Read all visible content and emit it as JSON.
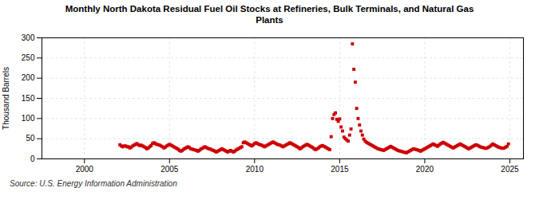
{
  "chart_data": {
    "type": "scatter",
    "title": "Monthly North Dakota Residual Fuel Oil Stocks at Refineries, Bulk Terminals, and Natural Gas\nPlants",
    "ylabel": "Thousand Barrels",
    "source": "Source: U.S. Energy Information Administration",
    "color": "#cc0000",
    "marker": "square",
    "grid": true,
    "xlim": [
      1997.5,
      2025.8
    ],
    "xticks": [
      2000,
      2005,
      2010,
      2015,
      2020,
      2025
    ],
    "ylim": [
      0,
      300
    ],
    "yticks": [
      0,
      50,
      100,
      150,
      200,
      250,
      300
    ],
    "x": [
      2002.083,
      2002.167,
      2002.25,
      2002.333,
      2002.417,
      2002.5,
      2002.583,
      2002.667,
      2002.75,
      2002.833,
      2002.917,
      2003.0,
      2003.083,
      2003.167,
      2003.25,
      2003.333,
      2003.417,
      2003.5,
      2003.583,
      2003.667,
      2003.75,
      2003.833,
      2003.917,
      2004.0,
      2004.083,
      2004.167,
      2004.25,
      2004.333,
      2004.417,
      2004.5,
      2004.583,
      2004.667,
      2004.75,
      2004.833,
      2004.917,
      2005.0,
      2005.083,
      2005.167,
      2005.25,
      2005.333,
      2005.417,
      2005.5,
      2005.583,
      2005.667,
      2005.75,
      2005.833,
      2005.917,
      2006.0,
      2006.083,
      2006.167,
      2006.25,
      2006.333,
      2006.417,
      2006.5,
      2006.583,
      2006.667,
      2006.75,
      2006.833,
      2006.917,
      2007.0,
      2007.083,
      2007.167,
      2007.25,
      2007.333,
      2007.417,
      2007.5,
      2007.583,
      2007.667,
      2007.75,
      2007.833,
      2007.917,
      2008.0,
      2008.083,
      2008.167,
      2008.25,
      2008.333,
      2008.417,
      2008.5,
      2008.583,
      2008.667,
      2008.75,
      2008.833,
      2008.917,
      2009.0,
      2009.083,
      2009.167,
      2009.25,
      2009.333,
      2009.417,
      2009.5,
      2009.583,
      2009.667,
      2009.75,
      2009.833,
      2009.917,
      2010.0,
      2010.083,
      2010.167,
      2010.25,
      2010.333,
      2010.417,
      2010.5,
      2010.583,
      2010.667,
      2010.75,
      2010.833,
      2010.917,
      2011.0,
      2011.083,
      2011.167,
      2011.25,
      2011.333,
      2011.417,
      2011.5,
      2011.583,
      2011.667,
      2011.75,
      2011.833,
      2011.917,
      2012.0,
      2012.083,
      2012.167,
      2012.25,
      2012.333,
      2012.417,
      2012.5,
      2012.583,
      2012.667,
      2012.75,
      2012.833,
      2012.917,
      2013.0,
      2013.083,
      2013.167,
      2013.25,
      2013.333,
      2013.417,
      2013.5,
      2013.583,
      2013.667,
      2013.75,
      2013.833,
      2013.917,
      2014.0,
      2014.083,
      2014.167,
      2014.25,
      2014.333,
      2014.417,
      2014.5,
      2014.583,
      2014.667,
      2014.75,
      2014.833,
      2014.917,
      2015.0,
      2015.083,
      2015.167,
      2015.25,
      2015.333,
      2015.417,
      2015.5,
      2015.583,
      2015.667,
      2015.75,
      2015.833,
      2015.917,
      2016.0,
      2016.083,
      2016.167,
      2016.25,
      2016.333,
      2016.417,
      2016.5,
      2016.583,
      2016.667,
      2016.75,
      2016.833,
      2016.917,
      2017.0,
      2017.083,
      2017.167,
      2017.25,
      2017.333,
      2017.417,
      2017.5,
      2017.583,
      2017.667,
      2017.75,
      2017.833,
      2017.917,
      2018.0,
      2018.083,
      2018.167,
      2018.25,
      2018.333,
      2018.417,
      2018.5,
      2018.583,
      2018.667,
      2018.75,
      2018.833,
      2018.917,
      2019.0,
      2019.083,
      2019.167,
      2019.25,
      2019.333,
      2019.417,
      2019.5,
      2019.583,
      2019.667,
      2019.75,
      2019.833,
      2019.917,
      2020.0,
      2020.083,
      2020.167,
      2020.25,
      2020.333,
      2020.417,
      2020.5,
      2020.583,
      2020.667,
      2020.75,
      2020.833,
      2020.917,
      2021.0,
      2021.083,
      2021.167,
      2021.25,
      2021.333,
      2021.417,
      2021.5,
      2021.583,
      2021.667,
      2021.75,
      2021.833,
      2021.917,
      2022.0,
      2022.083,
      2022.167,
      2022.25,
      2022.333,
      2022.417,
      2022.5,
      2022.583,
      2022.667,
      2022.75,
      2022.833,
      2022.917,
      2023.0,
      2023.083,
      2023.167,
      2023.25,
      2023.333,
      2023.417,
      2023.5,
      2023.583,
      2023.667,
      2023.75,
      2023.833,
      2023.917,
      2024.0,
      2024.083,
      2024.167,
      2024.25,
      2024.333,
      2024.417,
      2024.5,
      2024.583,
      2024.667,
      2024.75,
      2024.833,
      2024.917
    ],
    "values": [
      35,
      32,
      30,
      32,
      32,
      30,
      30,
      27,
      29,
      32,
      34,
      36,
      38,
      35,
      33,
      34,
      32,
      30,
      28,
      25,
      27,
      30,
      33,
      38,
      40,
      38,
      36,
      35,
      34,
      32,
      30,
      27,
      29,
      32,
      34,
      36,
      34,
      32,
      30,
      28,
      26,
      24,
      21,
      19,
      21,
      24,
      26,
      28,
      30,
      28,
      25,
      24,
      23,
      22,
      21,
      19,
      21,
      24,
      26,
      28,
      30,
      28,
      26,
      25,
      24,
      22,
      21,
      19,
      17,
      19,
      21,
      23,
      25,
      23,
      21,
      19,
      17,
      19,
      21,
      19,
      17,
      19,
      22,
      24,
      26,
      28,
      30,
      40,
      42,
      40,
      38,
      36,
      34,
      32,
      35,
      38,
      40,
      38,
      36,
      35,
      34,
      32,
      30,
      32,
      34,
      36,
      38,
      40,
      42,
      40,
      38,
      36,
      35,
      34,
      32,
      30,
      32,
      34,
      36,
      38,
      40,
      38,
      36,
      34,
      32,
      30,
      28,
      25,
      27,
      30,
      32,
      34,
      36,
      34,
      32,
      30,
      28,
      25,
      23,
      25,
      27,
      30,
      32,
      33,
      31,
      29,
      27,
      25,
      23,
      55,
      100,
      110,
      114,
      98,
      93,
      99,
      79,
      69,
      54,
      50,
      47,
      44,
      59,
      74,
      285,
      222,
      190,
      125,
      100,
      84,
      69,
      59,
      49,
      44,
      41,
      39,
      37,
      35,
      33,
      31,
      29,
      27,
      25,
      24,
      23,
      22,
      21,
      23,
      25,
      27,
      29,
      31,
      29,
      27,
      25,
      23,
      21,
      20,
      19,
      18,
      17,
      16,
      15,
      17,
      19,
      21,
      23,
      25,
      24,
      23,
      22,
      21,
      19,
      21,
      23,
      25,
      27,
      29,
      31,
      33,
      35,
      37,
      35,
      33,
      31,
      34,
      37,
      39,
      41,
      39,
      37,
      35,
      33,
      31,
      29,
      27,
      29,
      31,
      33,
      35,
      37,
      35,
      33,
      31,
      29,
      27,
      25,
      27,
      29,
      31,
      33,
      35,
      34,
      32,
      30,
      29,
      28,
      27,
      26,
      27,
      29,
      31,
      34,
      37,
      35,
      33,
      31,
      29,
      28,
      27,
      26,
      27,
      29,
      31,
      37
    ]
  }
}
